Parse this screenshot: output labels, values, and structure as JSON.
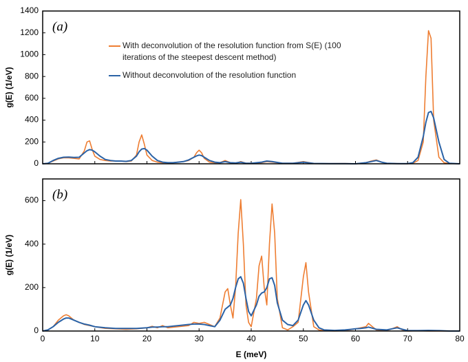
{
  "chart_data": [
    {
      "type": "line",
      "annotation": "(a)",
      "ylabel": "g(E) (1/eV)",
      "xlim": [
        0,
        80
      ],
      "xticks": [
        0,
        10,
        20,
        30,
        40,
        50,
        60,
        70,
        80
      ],
      "ylim": [
        0,
        1400
      ],
      "yticks": [
        0,
        200,
        400,
        600,
        800,
        1000,
        1200,
        1400
      ],
      "x": [
        0,
        1,
        2,
        3,
        4,
        5,
        6,
        7,
        8,
        8.5,
        9,
        9.5,
        10,
        11,
        12,
        13,
        14,
        15,
        16,
        17,
        18,
        18.5,
        19,
        19.5,
        20,
        21,
        22,
        23,
        24,
        25,
        26,
        27,
        28,
        29,
        29.5,
        30,
        30.5,
        31,
        32,
        33,
        34,
        35,
        36,
        37,
        38,
        39,
        40,
        42,
        43,
        44,
        46,
        48,
        50,
        52,
        55,
        58,
        60,
        62,
        63,
        64,
        65,
        66,
        68,
        70,
        71,
        72,
        73,
        73.5,
        74,
        74.5,
        75,
        76,
        77,
        78,
        80
      ],
      "series": [
        {
          "name": "With deconvolution of the resolution function from S(E) (100 iterations of the steepest descent method)",
          "color": "#ee7d31",
          "values": [
            0,
            5,
            25,
            45,
            55,
            55,
            50,
            45,
            120,
            200,
            210,
            130,
            70,
            40,
            30,
            25,
            25,
            25,
            20,
            25,
            80,
            200,
            265,
            180,
            80,
            30,
            15,
            10,
            10,
            10,
            15,
            20,
            30,
            60,
            100,
            125,
            100,
            50,
            15,
            10,
            10,
            30,
            10,
            5,
            20,
            5,
            5,
            10,
            20,
            15,
            5,
            5,
            20,
            3,
            2,
            3,
            0,
            10,
            25,
            35,
            15,
            5,
            2,
            0,
            5,
            30,
            200,
            800,
            1220,
            1150,
            400,
            60,
            10,
            3,
            0
          ]
        },
        {
          "name": "Without deconvolution of the resolution function",
          "color": "#2a62a6",
          "values": [
            0,
            5,
            30,
            50,
            60,
            62,
            58,
            60,
            100,
            120,
            130,
            125,
            110,
            70,
            40,
            30,
            25,
            25,
            22,
            30,
            70,
            110,
            135,
            140,
            125,
            70,
            30,
            15,
            10,
            10,
            15,
            20,
            35,
            60,
            72,
            80,
            75,
            60,
            30,
            15,
            10,
            20,
            10,
            8,
            15,
            5,
            5,
            15,
            25,
            20,
            5,
            5,
            15,
            3,
            2,
            2,
            0,
            10,
            20,
            30,
            15,
            5,
            2,
            2,
            10,
            60,
            250,
            380,
            470,
            480,
            420,
            200,
            40,
            5,
            0
          ]
        }
      ]
    },
    {
      "type": "line",
      "annotation": "(b)",
      "ylabel": "g(E) (1/eV)",
      "xlabel": "E (meV)",
      "xlim": [
        0,
        80
      ],
      "xticks": [
        0,
        10,
        20,
        30,
        40,
        50,
        60,
        70,
        80
      ],
      "ylim": [
        0,
        700
      ],
      "yticks": [
        0,
        200,
        400,
        600
      ],
      "x": [
        0,
        1,
        2,
        3,
        4,
        4.5,
        5,
        6,
        7,
        8,
        9,
        10,
        12,
        14,
        16,
        18,
        20,
        21,
        22,
        23,
        24,
        26,
        28,
        29,
        30,
        31,
        32,
        33,
        34,
        35,
        35.5,
        36,
        36.5,
        37,
        37.5,
        38,
        38.5,
        39,
        39.5,
        40,
        41,
        41.5,
        42,
        42.5,
        43,
        43.5,
        44,
        44.5,
        45,
        46,
        47,
        48,
        49,
        50,
        50.5,
        51,
        52,
        53,
        54,
        56,
        58,
        60,
        61,
        62,
        62.5,
        63,
        64,
        66,
        67,
        68,
        69,
        70,
        72,
        74,
        76,
        78,
        80
      ],
      "series": [
        {
          "color": "#ee7d31",
          "values": [
            0,
            5,
            20,
            50,
            70,
            75,
            70,
            50,
            40,
            30,
            25,
            20,
            12,
            10,
            8,
            10,
            15,
            22,
            15,
            25,
            15,
            20,
            25,
            40,
            35,
            40,
            30,
            20,
            60,
            180,
            195,
            120,
            60,
            200,
            450,
            605,
            400,
            120,
            40,
            20,
            150,
            300,
            345,
            200,
            120,
            400,
            585,
            450,
            150,
            15,
            5,
            20,
            40,
            250,
            315,
            180,
            20,
            5,
            2,
            0,
            2,
            10,
            15,
            20,
            35,
            25,
            5,
            2,
            10,
            20,
            5,
            0,
            2,
            0,
            0,
            0,
            0
          ]
        },
        {
          "color": "#2a62a6",
          "values": [
            0,
            5,
            20,
            40,
            55,
            60,
            60,
            50,
            40,
            32,
            27,
            20,
            15,
            12,
            12,
            12,
            15,
            18,
            18,
            20,
            20,
            25,
            30,
            32,
            32,
            30,
            25,
            20,
            50,
            100,
            110,
            120,
            150,
            200,
            240,
            250,
            220,
            150,
            90,
            70,
            120,
            160,
            175,
            180,
            200,
            240,
            245,
            210,
            130,
            50,
            30,
            25,
            50,
            120,
            140,
            120,
            50,
            15,
            5,
            3,
            5,
            10,
            12,
            15,
            18,
            15,
            8,
            5,
            10,
            15,
            8,
            2,
            2,
            3,
            2,
            0,
            0
          ]
        }
      ]
    }
  ]
}
